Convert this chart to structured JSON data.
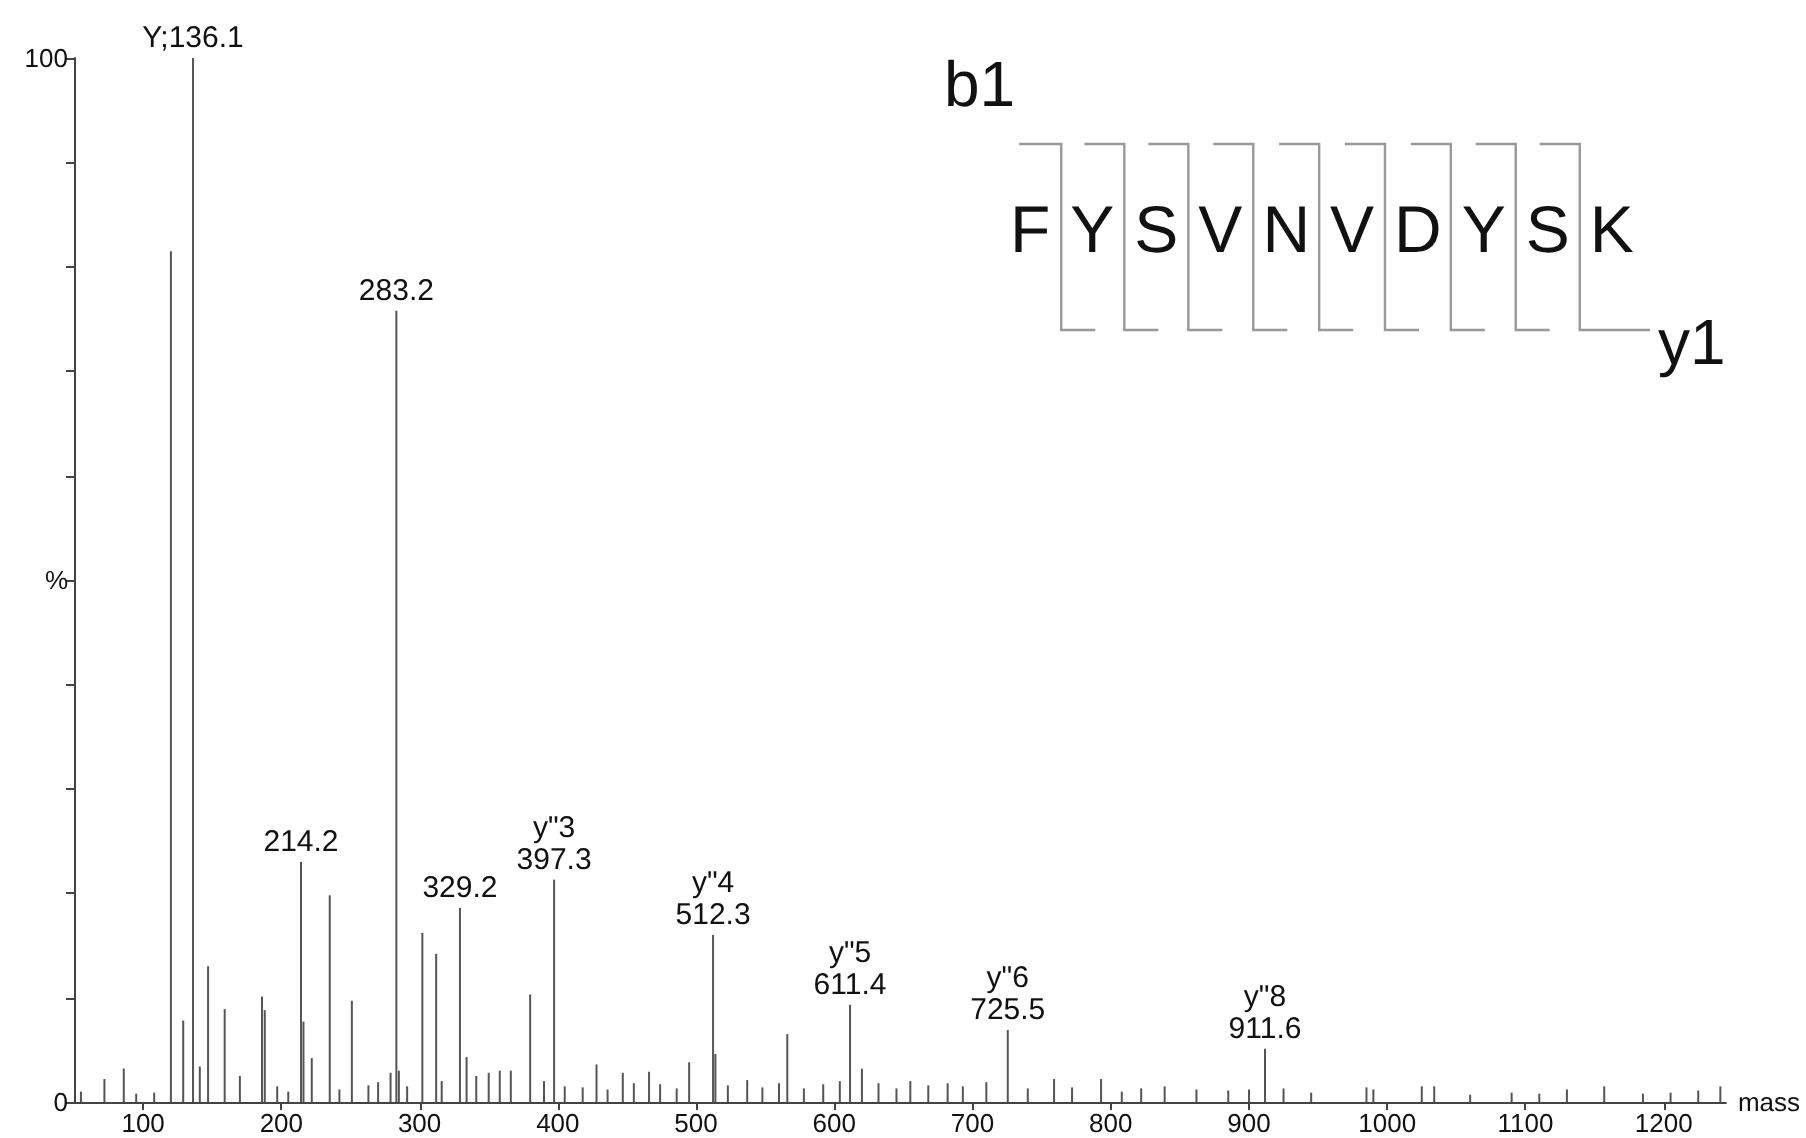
{
  "chart_data": {
    "type": "bar",
    "xlabel": "mass",
    "x": [
      55,
      72,
      86,
      95,
      108,
      120.1,
      129,
      136.1,
      141,
      147,
      159,
      170,
      186,
      188,
      197,
      205,
      214.2,
      216,
      222,
      235,
      242,
      251,
      263,
      270,
      279,
      283.2,
      285,
      291,
      302,
      312,
      316,
      329.2,
      334,
      341,
      350,
      358,
      366,
      380,
      390,
      397.3,
      405,
      418,
      428,
      436,
      447,
      455,
      466,
      474,
      486,
      495,
      512.3,
      514,
      523,
      537,
      548,
      560,
      566,
      578,
      592,
      604,
      611.4,
      620,
      632,
      645,
      655,
      668,
      682,
      693,
      710,
      725.5,
      740,
      759,
      772,
      793,
      808,
      822,
      839,
      862,
      885,
      900,
      911.6,
      925,
      945,
      985,
      990,
      1025,
      1034,
      1060,
      1090,
      1110,
      1130,
      1157,
      1185,
      1205,
      1225,
      1241
    ],
    "values": [
      1.0,
      2.2,
      3.2,
      0.8,
      0.9,
      81.5,
      7.8,
      100,
      3.4,
      13.0,
      8.9,
      2.5,
      10.1,
      8.8,
      1.5,
      1.0,
      23.0,
      7.7,
      4.2,
      19.8,
      1.2,
      9.7,
      1.6,
      1.9,
      2.8,
      75.8,
      3.0,
      1.5,
      16.2,
      14.2,
      2.0,
      18.6,
      4.3,
      2.5,
      2.8,
      3.0,
      3.0,
      10.3,
      2.0,
      21.3,
      1.5,
      1.4,
      3.6,
      1.2,
      2.8,
      1.8,
      2.9,
      1.7,
      1.3,
      3.8,
      16.0,
      4.6,
      1.6,
      2.1,
      1.4,
      1.8,
      6.5,
      1.3,
      1.7,
      2.0,
      9.3,
      3.2,
      1.8,
      1.3,
      2.0,
      1.6,
      1.8,
      1.5,
      1.9,
      6.9,
      1.3,
      2.2,
      1.4,
      2.2,
      1.0,
      1.3,
      1.5,
      1.2,
      1.1,
      1.2,
      5.1,
      1.3,
      0.9,
      1.4,
      1.2,
      1.5,
      1.5,
      0.7,
      0.9,
      0.8,
      1.2,
      1.5,
      0.8,
      0.9,
      1.1,
      1.5
    ],
    "color": "#555555",
    "xlim": [
      50,
      1245
    ],
    "xticks": [
      100,
      200,
      300,
      400,
      500,
      600,
      700,
      800,
      900,
      1000,
      1100,
      1200
    ],
    "ylim": [
      0,
      100
    ],
    "yticks": [
      0,
      {
        "value": 10,
        "label": null
      },
      {
        "value": 20,
        "label": null
      },
      {
        "value": 30,
        "label": null
      },
      {
        "value": 40,
        "label": null
      },
      {
        "value": 50,
        "label": "%"
      },
      {
        "value": 60,
        "label": null
      },
      {
        "value": 70,
        "label": null
      },
      {
        "value": 80,
        "label": null
      },
      {
        "value": 90,
        "label": null
      },
      100
    ],
    "grid": false,
    "annotations": [
      "b1",
      "FYSVNVDYSK",
      "y1",
      {
        "text": "Y;136.1",
        "x": 136.1,
        "y": 100
      },
      {
        "text": "214.2",
        "x": 214.2,
        "y": 23.0
      },
      {
        "text": "283.2",
        "x": 283.2,
        "y": 75.8
      },
      {
        "text": "329.2",
        "x": 329.2,
        "y": 18.6
      },
      {
        "text": "y\"3\n397.3",
        "x": 397.3,
        "y": 21.3
      },
      {
        "text": "y\"4\n512.3",
        "x": 512.3,
        "y": 16.0
      },
      {
        "text": "y\"5\n611.4",
        "x": 611.4,
        "y": 9.3
      },
      {
        "text": "y\"6\n725.5",
        "x": 725.5,
        "y": 6.9
      },
      {
        "text": "y\"8\n911.6",
        "x": 911.6,
        "y": 5.1
      }
    ]
  }
}
